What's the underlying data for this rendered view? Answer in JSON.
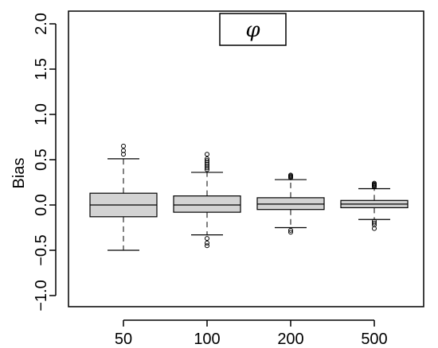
{
  "chart_data": {
    "type": "boxplot",
    "title": "",
    "legend_label": "φ",
    "xlabel": "",
    "ylabel": "Bias",
    "ylim": [
      -1.15,
      2.05
    ],
    "yticks": [
      -1.0,
      -0.5,
      0.0,
      0.5,
      1.0,
      1.5,
      2.0
    ],
    "ytick_labels": [
      "−1.0",
      "−0.5",
      "0.0",
      "0.5",
      "1.0",
      "1.5",
      "2.0"
    ],
    "categories": [
      "50",
      "100",
      "200",
      "500"
    ],
    "grid": false,
    "box_color": "#d3d3d3",
    "boxes": [
      {
        "label": "50",
        "whisker_low": -0.5,
        "q1": -0.13,
        "median": 0.0,
        "q3": 0.13,
        "whisker_high": 0.51,
        "outliers": [
          0.56,
          0.6,
          0.65
        ]
      },
      {
        "label": "100",
        "whisker_low": -0.33,
        "q1": -0.08,
        "median": 0.0,
        "q3": 0.1,
        "whisker_high": 0.36,
        "outliers": [
          0.39,
          0.41,
          0.43,
          0.45,
          0.47,
          0.49,
          0.51,
          0.56,
          -0.37,
          -0.42,
          -0.45
        ]
      },
      {
        "label": "200",
        "whisker_low": -0.25,
        "q1": -0.05,
        "median": 0.01,
        "q3": 0.08,
        "whisker_high": 0.28,
        "outliers": [
          0.3,
          0.31,
          0.32,
          0.33,
          -0.28,
          -0.3
        ]
      },
      {
        "label": "500",
        "whisker_low": -0.16,
        "q1": -0.03,
        "median": 0.01,
        "q3": 0.05,
        "whisker_high": 0.18,
        "outliers": [
          0.2,
          0.21,
          0.22,
          0.23,
          0.24,
          -0.18,
          -0.2,
          -0.22,
          -0.26
        ]
      }
    ]
  }
}
